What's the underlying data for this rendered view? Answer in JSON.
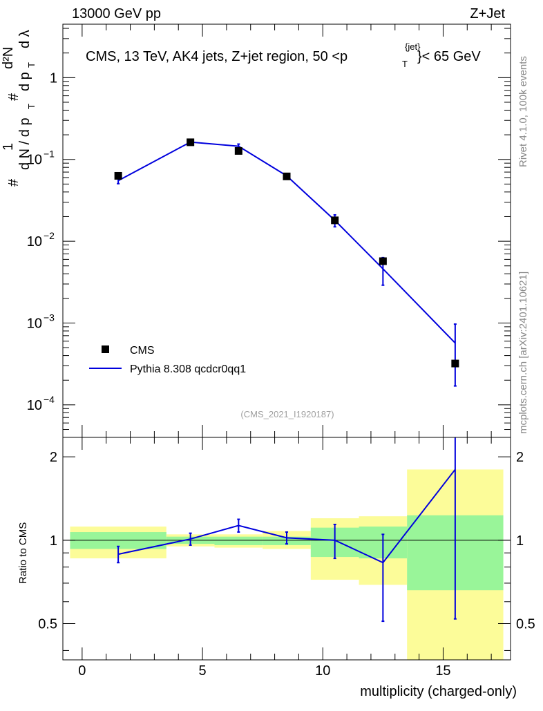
{
  "header": {
    "left": "13000 GeV pp",
    "right": "Z+Jet",
    "plot_title": "CMS, 13 TeV, AK4 jets, Z+jet region, 50 <p",
    "title_sup": "{jet}",
    "title_sub": "T",
    "title_tail": "}< 65 GeV"
  },
  "side_labels": {
    "rivet": "Rivet 4.1.0,  100k events",
    "mcplots": "mcplots.cern.ch [arXiv:2401.10621]"
  },
  "analysis_tag": "(CMS_2021_I1920187)",
  "ylabel_main": {
    "one": "1",
    "hash": "#",
    "dN": "d N / d p",
    "T": "T",
    "d2N": "d²N",
    "dpT": "d p",
    "dlambda": "d λ"
  },
  "legend": {
    "data_label": "CMS",
    "mc_label": "Pythia 8.308 qcdcr0qq1"
  },
  "colors": {
    "mc": "#0000dd",
    "band_green": "#99f599",
    "band_yellow": "#fcfc99",
    "data": "#000000"
  },
  "chart_data": [
    {
      "type": "scatter",
      "panel": "main",
      "yscale": "log",
      "xlim": [
        -0.8,
        17.8
      ],
      "ylim": [
        4e-05,
        4.5
      ],
      "yticks": [
        {
          "v": 1,
          "label": "1",
          "exp": ""
        },
        {
          "v": 0.1,
          "label": "10",
          "exp": "−1"
        },
        {
          "v": 0.01,
          "label": "10",
          "exp": "−2"
        },
        {
          "v": 0.001,
          "label": "10",
          "exp": "−3"
        },
        {
          "v": 0.0001,
          "label": "10",
          "exp": "−4"
        }
      ],
      "cms": {
        "name": "CMS",
        "x": [
          1.5,
          4.5,
          6.5,
          8.5,
          10.5,
          12.5,
          15.5
        ],
        "y": [
          0.063,
          0.162,
          0.127,
          0.062,
          0.018,
          0.0057,
          0.00032
        ]
      },
      "mc": {
        "name": "Pythia 8.308 qcdcr0qq1",
        "x": [
          1.5,
          4.5,
          6.5,
          8.5,
          10.5,
          12.5,
          15.5
        ],
        "y": [
          0.055,
          0.163,
          0.145,
          0.063,
          0.018,
          0.0046,
          0.00057
        ],
        "err_lo": [
          0.0045,
          0.006,
          0.009,
          0.004,
          0.003,
          0.0017,
          0.0004
        ],
        "err_hi": [
          0.0045,
          0.006,
          0.009,
          0.004,
          0.003,
          0.0017,
          0.0004
        ]
      }
    },
    {
      "type": "line",
      "panel": "ratio",
      "ylabel": "Ratio to CMS",
      "xlabel": "multiplicity (charged-only)",
      "xlim": [
        -0.8,
        17.8
      ],
      "ylim": [
        0.37,
        2.35
      ],
      "xticks": [
        0,
        5,
        10,
        15
      ],
      "yticks": [
        0.5,
        1,
        2
      ],
      "reference": 1,
      "bins": [
        {
          "lo": -0.5,
          "hi": 3.5,
          "g": [
            0.93,
            1.07
          ],
          "y": [
            0.86,
            1.12
          ]
        },
        {
          "lo": 3.5,
          "hi": 5.5,
          "g": [
            0.97,
            1.03
          ],
          "y": [
            0.95,
            1.05
          ]
        },
        {
          "lo": 5.5,
          "hi": 7.5,
          "g": [
            0.96,
            1.03
          ],
          "y": [
            0.94,
            1.05
          ]
        },
        {
          "lo": 7.5,
          "hi": 9.5,
          "g": [
            0.96,
            1.03
          ],
          "y": [
            0.93,
            1.08
          ]
        },
        {
          "lo": 9.5,
          "hi": 11.5,
          "g": [
            0.87,
            1.11
          ],
          "y": [
            0.72,
            1.2
          ]
        },
        {
          "lo": 11.5,
          "hi": 13.5,
          "g": [
            0.86,
            1.12
          ],
          "y": [
            0.69,
            1.22
          ]
        },
        {
          "lo": 13.5,
          "hi": 17.5,
          "g": [
            0.66,
            1.23
          ],
          "y": [
            0.37,
            1.8
          ]
        }
      ],
      "mc": {
        "x": [
          1.5,
          4.5,
          6.5,
          8.5,
          10.5,
          12.5,
          15.5
        ],
        "y": [
          0.89,
          1.01,
          1.13,
          1.02,
          1.0,
          0.83,
          1.8
        ],
        "err_lo": [
          0.06,
          0.05,
          0.06,
          0.05,
          0.14,
          0.32,
          1.28
        ],
        "err_hi": [
          0.06,
          0.05,
          0.06,
          0.05,
          0.14,
          0.22,
          0.55
        ]
      }
    }
  ]
}
